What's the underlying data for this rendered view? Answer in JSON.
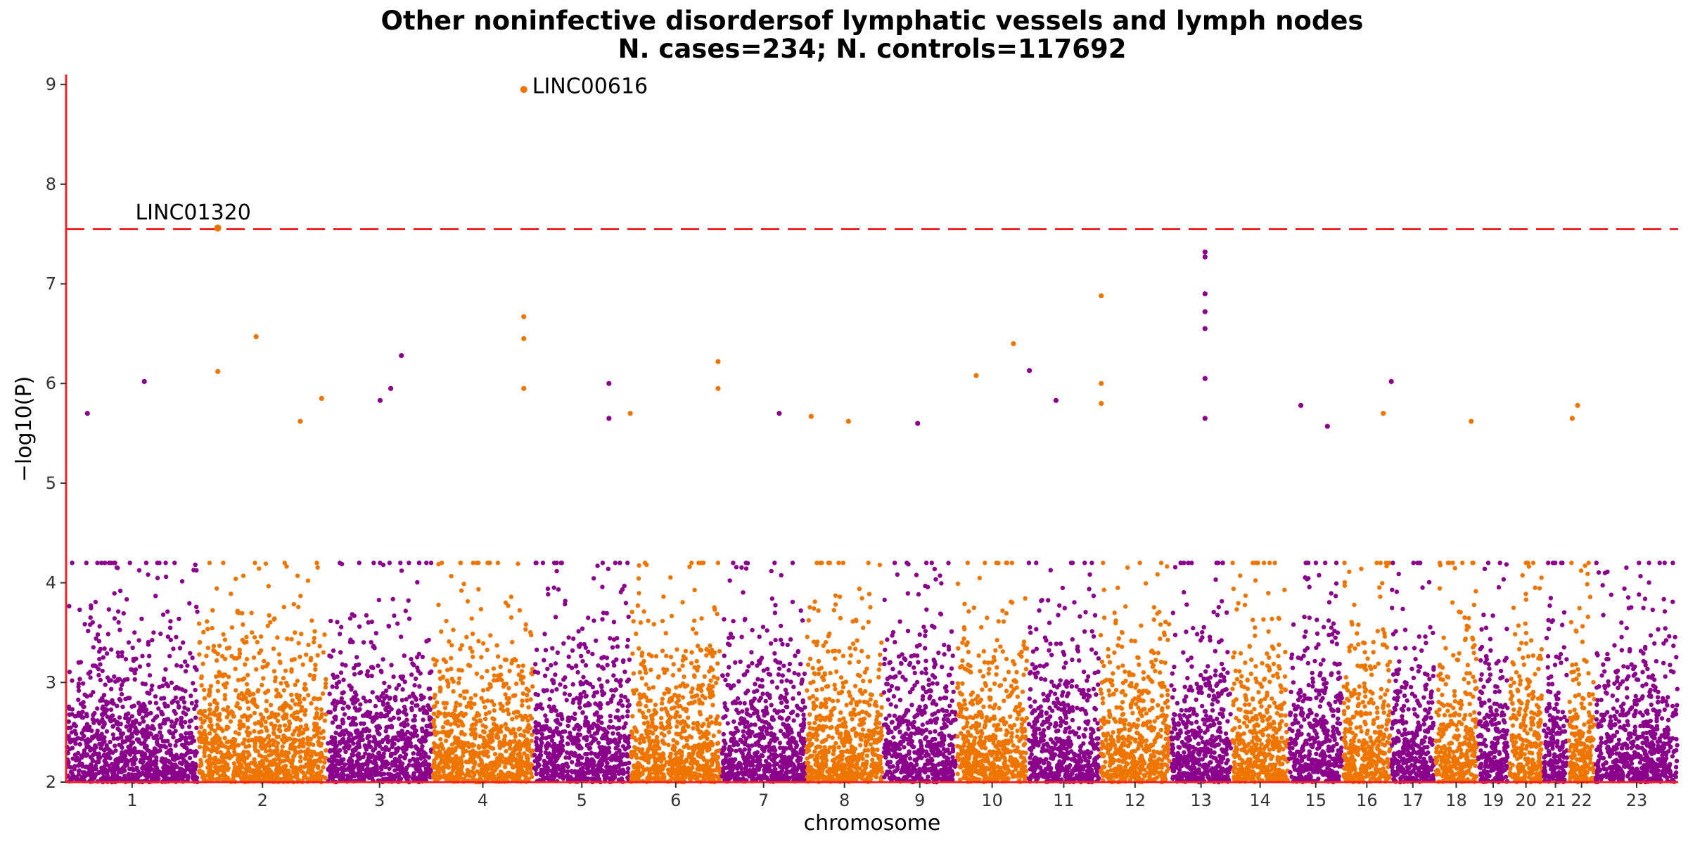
{
  "chart_data": {
    "type": "scatter",
    "subtype": "manhattan",
    "title": "Other noninfective disordersof lymphatic vessels and lymph nodes",
    "subtitle": "N. cases=234; N. controls=117692",
    "xlabel": "chromosome",
    "ylabel": "−log10(P)",
    "ylim": [
      2,
      9.1
    ],
    "yticks": [
      2,
      3,
      4,
      5,
      6,
      7,
      8,
      9
    ],
    "grid": false,
    "legend": "none",
    "colors": {
      "odd": "#8B008B",
      "even": "#EE7600",
      "threshold": "#EE2222",
      "axis": "#EE2222"
    },
    "threshold": 7.55,
    "chromosomes": [
      {
        "label": "1",
        "start": 0,
        "end": 248
      },
      {
        "label": "2",
        "start": 248,
        "end": 490
      },
      {
        "label": "3",
        "start": 490,
        "end": 688
      },
      {
        "label": "4",
        "start": 688,
        "end": 878
      },
      {
        "label": "5",
        "start": 878,
        "end": 1060
      },
      {
        "label": "6",
        "start": 1060,
        "end": 1231
      },
      {
        "label": "7",
        "start": 1231,
        "end": 1390
      },
      {
        "label": "8",
        "start": 1390,
        "end": 1535
      },
      {
        "label": "9",
        "start": 1535,
        "end": 1673
      },
      {
        "label": "10",
        "start": 1673,
        "end": 1807
      },
      {
        "label": "11",
        "start": 1807,
        "end": 1942
      },
      {
        "label": "12",
        "start": 1942,
        "end": 2075
      },
      {
        "label": "13",
        "start": 2075,
        "end": 2190
      },
      {
        "label": "14",
        "start": 2190,
        "end": 2297
      },
      {
        "label": "15",
        "start": 2297,
        "end": 2399
      },
      {
        "label": "16",
        "start": 2399,
        "end": 2489
      },
      {
        "label": "17",
        "start": 2489,
        "end": 2572
      },
      {
        "label": "18",
        "start": 2572,
        "end": 2652
      },
      {
        "label": "19",
        "start": 2652,
        "end": 2711
      },
      {
        "label": "20",
        "start": 2711,
        "end": 2775
      },
      {
        "label": "21",
        "start": 2775,
        "end": 2822
      },
      {
        "label": "22",
        "start": 2822,
        "end": 2873
      },
      {
        "label": "23",
        "start": 2873,
        "end": 3029
      }
    ],
    "highlight_points": [
      {
        "chromosome": "4",
        "pos": 860,
        "p": 8.95,
        "label": "LINC00616"
      },
      {
        "chromosome": "2",
        "pos": 285,
        "p": 7.56,
        "label": "LINC01320"
      }
    ],
    "peak_points": [
      {
        "chromosome": "1",
        "pos": 147,
        "p": 6.02
      },
      {
        "chromosome": "1",
        "pos": 40,
        "p": 5.7
      },
      {
        "chromosome": "2",
        "pos": 285,
        "p": 6.12
      },
      {
        "chromosome": "2",
        "pos": 357,
        "p": 6.47
      },
      {
        "chromosome": "2",
        "pos": 440,
        "p": 5.62
      },
      {
        "chromosome": "2",
        "pos": 480,
        "p": 5.85
      },
      {
        "chromosome": "3",
        "pos": 630,
        "p": 6.28
      },
      {
        "chromosome": "3",
        "pos": 610,
        "p": 5.95
      },
      {
        "chromosome": "3",
        "pos": 590,
        "p": 5.83
      },
      {
        "chromosome": "4",
        "pos": 860,
        "p": 6.67
      },
      {
        "chromosome": "4",
        "pos": 860,
        "p": 6.45
      },
      {
        "chromosome": "4",
        "pos": 860,
        "p": 5.95
      },
      {
        "chromosome": "5",
        "pos": 1020,
        "p": 6.0
      },
      {
        "chromosome": "5",
        "pos": 1020,
        "p": 5.65
      },
      {
        "chromosome": "6",
        "pos": 1060,
        "p": 5.7
      },
      {
        "chromosome": "6",
        "pos": 1225,
        "p": 6.22
      },
      {
        "chromosome": "6",
        "pos": 1225,
        "p": 5.95
      },
      {
        "chromosome": "7",
        "pos": 1340,
        "p": 5.7
      },
      {
        "chromosome": "8",
        "pos": 1400,
        "p": 5.67
      },
      {
        "chromosome": "8",
        "pos": 1470,
        "p": 5.62
      },
      {
        "chromosome": "9",
        "pos": 1600,
        "p": 5.6
      },
      {
        "chromosome": "10",
        "pos": 1710,
        "p": 6.08
      },
      {
        "chromosome": "10",
        "pos": 1780,
        "p": 6.4
      },
      {
        "chromosome": "11",
        "pos": 1810,
        "p": 6.13
      },
      {
        "chromosome": "11",
        "pos": 1860,
        "p": 5.83
      },
      {
        "chromosome": "12",
        "pos": 1945,
        "p": 6.88
      },
      {
        "chromosome": "12",
        "pos": 1945,
        "p": 6.0
      },
      {
        "chromosome": "12",
        "pos": 1945,
        "p": 5.8
      },
      {
        "chromosome": "13",
        "pos": 2140,
        "p": 7.32
      },
      {
        "chromosome": "13",
        "pos": 2140,
        "p": 7.27
      },
      {
        "chromosome": "13",
        "pos": 2140,
        "p": 6.9
      },
      {
        "chromosome": "13",
        "pos": 2140,
        "p": 6.72
      },
      {
        "chromosome": "13",
        "pos": 2140,
        "p": 6.55
      },
      {
        "chromosome": "13",
        "pos": 2140,
        "p": 6.05
      },
      {
        "chromosome": "13",
        "pos": 2140,
        "p": 5.65
      },
      {
        "chromosome": "15",
        "pos": 2320,
        "p": 5.78
      },
      {
        "chromosome": "15",
        "pos": 2370,
        "p": 5.57
      },
      {
        "chromosome": "16",
        "pos": 2475,
        "p": 5.7
      },
      {
        "chromosome": "17",
        "pos": 2490,
        "p": 6.02
      },
      {
        "chromosome": "18",
        "pos": 2640,
        "p": 5.62
      },
      {
        "chromosome": "22",
        "pos": 2840,
        "p": 5.78
      },
      {
        "chromosome": "22",
        "pos": 2830,
        "p": 5.65
      }
    ]
  }
}
